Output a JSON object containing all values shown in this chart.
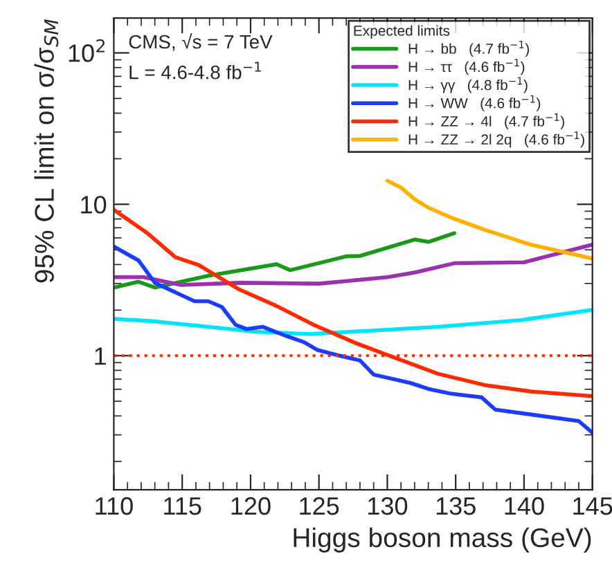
{
  "chart_data": {
    "type": "line",
    "xlabel": "Higgs boson mass (GeV)",
    "ylabel": "95% CL limit on σ/σ$_{SM}$",
    "legend_title": "Expected limits",
    "annotations": [
      "CMS, √s = 7 TeV",
      "L = 4.6-4.8 fb$^{−1}$"
    ],
    "log": "y",
    "xlim": [
      110,
      145
    ],
    "xticks": [
      110,
      115,
      120,
      125,
      130,
      135,
      140,
      145
    ],
    "ylim": [
      0.13,
      170
    ],
    "yticks": [
      1,
      10,
      {
        "value": 100,
        "label": "10$^{2}$"
      }
    ],
    "grid": false,
    "legend": "top right",
    "line_style": "solid",
    "ref_lines": [
      {
        "axis": "y",
        "value": 1,
        "label": null,
        "color": "#ff2a00",
        "line_style": "dotted"
      }
    ],
    "series": [
      {
        "name": "H → bb   (4.7 fb$^{−1}$)",
        "color": "#1a9a1a",
        "x": [
          110,
          111.8,
          113,
          116.9,
          121.9,
          122.9,
          127,
          128,
          132,
          133,
          134.9
        ],
        "values": [
          2.82,
          3.08,
          2.82,
          3.37,
          4.02,
          3.67,
          4.53,
          4.56,
          5.85,
          5.64,
          6.45
        ]
      },
      {
        "name": "H → ττ   (4.6 fb$^{−1}$)",
        "color": "#9b30b0",
        "x": [
          110,
          112.2,
          114.9,
          119.2,
          125,
          130,
          132,
          134.9,
          140,
          145
        ],
        "values": [
          3.3,
          3.3,
          2.93,
          3.03,
          2.99,
          3.3,
          3.54,
          4.08,
          4.14,
          5.41
        ]
      },
      {
        "name": "H → γγ   (4.8 fb$^{−1}$)",
        "color": "#00e5ff",
        "x": [
          110,
          112.8,
          116.9,
          120.3,
          124.3,
          128.7,
          133.7,
          139.8,
          145
        ],
        "values": [
          1.75,
          1.69,
          1.55,
          1.44,
          1.39,
          1.46,
          1.55,
          1.72,
          2.01
        ]
      },
      {
        "name": "H → WW   (4.6 fb$^{−1}$)",
        "color": "#1a3cff",
        "x": [
          110,
          111.8,
          113,
          115.9,
          116.9,
          117.9,
          118.9,
          119.7,
          120.9,
          122.6,
          123.9,
          124.9,
          126.3,
          128,
          129,
          131.7,
          133.1,
          134.7,
          136.9,
          137.9,
          144,
          145
        ],
        "values": [
          5.26,
          4.26,
          3.03,
          2.29,
          2.29,
          2.1,
          1.6,
          1.5,
          1.55,
          1.35,
          1.23,
          1.09,
          1.01,
          0.93,
          0.75,
          0.66,
          0.6,
          0.56,
          0.53,
          0.44,
          0.37,
          0.31
        ]
      },
      {
        "name": "H → ZZ → 4l   (4.7 fb$^{−1}$)",
        "color": "#ff2a00",
        "x": [
          110,
          112.5,
          114.5,
          116.2,
          119.2,
          121.9,
          124.6,
          127.7,
          130.4,
          133.7,
          137.1,
          140.5,
          145
        ],
        "values": [
          9.2,
          6.4,
          4.47,
          3.97,
          2.73,
          2.13,
          1.6,
          1.21,
          0.98,
          0.76,
          0.64,
          0.58,
          0.54
        ]
      },
      {
        "name": "H → ZZ → 2l 2q   (4.6 fb$^{−1}$)",
        "color": "#ffb000",
        "x": [
          130,
          131,
          132,
          133,
          134.7,
          137.1,
          140.5,
          145
        ],
        "values": [
          14.3,
          12.9,
          10.8,
          9.5,
          8.15,
          6.8,
          5.41,
          4.38
        ]
      }
    ]
  }
}
